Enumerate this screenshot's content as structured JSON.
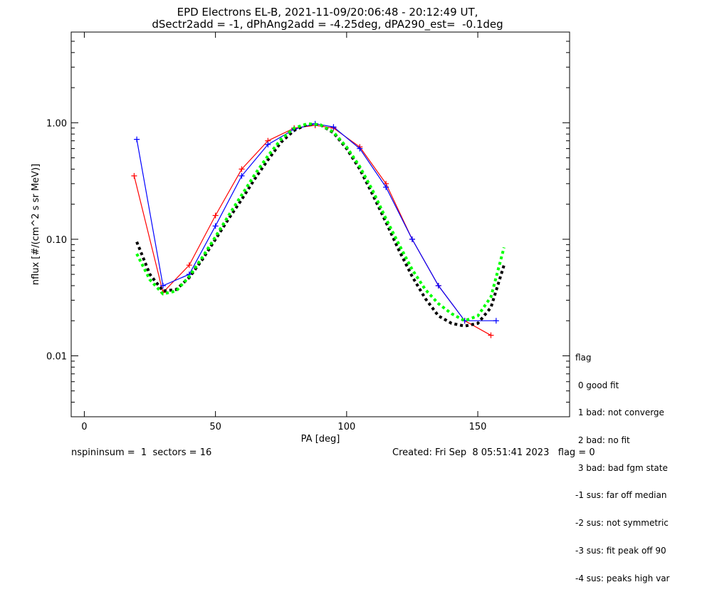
{
  "title_line1": "EPD Electrons EL-B, 2021-11-09/20:06:48 - 20:12:49 UT,",
  "title_line2": "dSectr2add = -1, dPhAng2add = -4.25deg, dPA290_est=  -0.1deg",
  "footer": {
    "left": "nspininsum =  1  sectors = 16",
    "right": "Created: Fri Sep  8 05:51:41 2023   flag = 0"
  },
  "legend": {
    "title": "flag",
    "items": [
      " 0 good fit",
      " 1 bad: not converge",
      " 2 bad: no fit",
      " 3 bad: bad fgm state",
      "-1 sus: far off median",
      "-2 sus: not symmetric",
      "-3 sus: fit peak off 90",
      "-4 sus: peaks high var"
    ]
  },
  "colors": {
    "red": "#ff0000",
    "blue": "#0000ff",
    "black": "#000000",
    "green": "#00ff00"
  },
  "chart_data": {
    "type": "line",
    "xlabel": "PA [deg]",
    "ylabel": "nflux [#/(cm^2 s sr MeV)]",
    "xlim": [
      -5,
      185
    ],
    "ylim": [
      0.003,
      6.0
    ],
    "ylog": true,
    "xticks": [
      0,
      50,
      100,
      150
    ],
    "xtick_labels": [
      "0",
      "50",
      "100",
      "150"
    ],
    "yticks": [
      0.01,
      0.1,
      1.0
    ],
    "ytick_labels": [
      "0.01",
      "0.10",
      "1.00"
    ],
    "series": [
      {
        "color": "#ff0000",
        "marker": "+",
        "x": [
          19,
          30,
          40,
          50,
          60,
          70,
          80,
          88,
          95,
          105,
          115,
          125,
          135,
          145,
          155
        ],
        "y": [
          0.35,
          0.035,
          0.06,
          0.16,
          0.4,
          0.7,
          0.9,
          0.95,
          0.9,
          0.62,
          0.3,
          0.1,
          0.04,
          0.02,
          0.015
        ]
      },
      {
        "color": "#0000ff",
        "marker": "+",
        "x": [
          20,
          30,
          40,
          50,
          60,
          70,
          80,
          88,
          95,
          105,
          115,
          125,
          135,
          145,
          157
        ],
        "y": [
          0.72,
          0.04,
          0.05,
          0.13,
          0.35,
          0.65,
          0.88,
          0.98,
          0.92,
          0.6,
          0.28,
          0.1,
          0.04,
          0.02,
          0.02
        ]
      },
      {
        "color": "#000000",
        "style": "dotted",
        "x": [
          20,
          25,
          30,
          35,
          40,
          45,
          50,
          55,
          60,
          65,
          70,
          75,
          80,
          85,
          90,
          95,
          100,
          105,
          110,
          115,
          120,
          125,
          130,
          135,
          140,
          145,
          150,
          155,
          160
        ],
        "y": [
          0.095,
          0.05,
          0.036,
          0.037,
          0.047,
          0.067,
          0.1,
          0.15,
          0.22,
          0.33,
          0.48,
          0.68,
          0.86,
          0.97,
          0.96,
          0.82,
          0.6,
          0.4,
          0.24,
          0.14,
          0.08,
          0.048,
          0.031,
          0.022,
          0.019,
          0.018,
          0.019,
          0.026,
          0.06
        ]
      },
      {
        "color": "#00ff00",
        "style": "dotted",
        "x": [
          20,
          25,
          30,
          35,
          40,
          45,
          50,
          55,
          60,
          65,
          70,
          75,
          80,
          85,
          90,
          95,
          100,
          105,
          110,
          115,
          120,
          125,
          130,
          135,
          140,
          145,
          150,
          155,
          160
        ],
        "y": [
          0.075,
          0.045,
          0.034,
          0.036,
          0.048,
          0.07,
          0.105,
          0.16,
          0.24,
          0.36,
          0.52,
          0.72,
          0.9,
          0.98,
          0.96,
          0.83,
          0.62,
          0.42,
          0.26,
          0.15,
          0.09,
          0.055,
          0.037,
          0.028,
          0.023,
          0.02,
          0.022,
          0.032,
          0.085
        ]
      }
    ]
  }
}
